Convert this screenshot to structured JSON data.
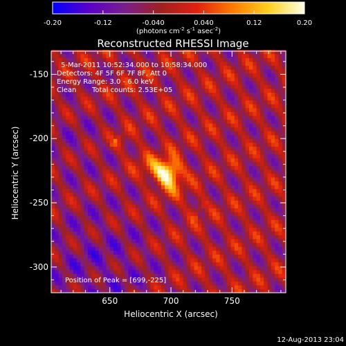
{
  "chart_data": {
    "type": "heatmap",
    "title": "Reconstructed RHESSI Image",
    "xlabel": "Heliocentric X (arcsec)",
    "ylabel": "Heliocentric Y (arcsec)",
    "xlim": [
      602,
      794
    ],
    "ylim": [
      -320,
      -132
    ],
    "x_ticks": [
      650,
      700,
      750
    ],
    "y_ticks": [
      -150,
      -200,
      -250,
      -300
    ],
    "colorbar": {
      "min": -0.2,
      "max": 0.2,
      "ticks": [
        "-0.20",
        "-0.12",
        "-0.040",
        "0.040",
        "0.12",
        "0.20"
      ],
      "tick_values": [
        -0.2,
        -0.12,
        -0.04,
        0.04,
        0.12,
        0.2
      ],
      "unit_label_main": "(photons cm",
      "unit_label_exp1": "-2",
      "unit_label_mid": " s",
      "unit_label_exp2": "-1",
      "unit_label_mid2": " asec",
      "unit_label_exp3": "-2",
      "unit_label_end": ")",
      "colors": [
        "#0000ff",
        "#5a00c8",
        "#7a1e8c",
        "#a02020",
        "#e02010",
        "#ff7a00",
        "#ffd020",
        "#ffffe8"
      ]
    },
    "annotations": {
      "time": "5-Mar-2011 10:52:34.000 to 10:58:34.000",
      "detectors": "Detectors: 4F 5F 6F 7F 8F, Att 0",
      "energy": "Energy Range: 3.0 - 6.0 keV",
      "method": "Clean",
      "counts": "Total counts: 2.53E+05",
      "peak": "Position of Peak = [699,-225]"
    },
    "peak": {
      "x": 699,
      "y": -225
    },
    "image_texture": {
      "background_level": -0.03,
      "stripe_angle_deg": 35,
      "stripe_period_arcsec": 18,
      "ridge": {
        "x0": 690,
        "y0": -228,
        "angle_deg": -40,
        "length": 90,
        "level": 0.1
      },
      "peak_level": 0.2,
      "peak_sigma_arcsec": 7
    },
    "timestamp": "12-Aug-2013 23:04"
  }
}
